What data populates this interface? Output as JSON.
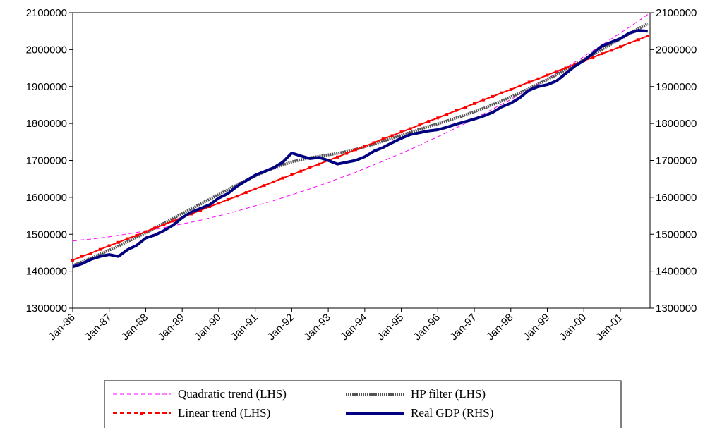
{
  "chart_data": {
    "type": "line",
    "categories": [
      "Jan-86",
      null,
      null,
      null,
      "Jan-87",
      null,
      null,
      null,
      "Jan-88",
      null,
      null,
      null,
      "Jan-89",
      null,
      null,
      null,
      "Jan-90",
      null,
      null,
      null,
      "Jan-91",
      null,
      null,
      null,
      "Jan-92",
      null,
      null,
      null,
      "Jan-93",
      null,
      null,
      null,
      "Jan-94",
      null,
      null,
      null,
      "Jan-95",
      null,
      null,
      null,
      "Jan-96",
      null,
      null,
      null,
      "Jan-97",
      null,
      null,
      null,
      "Jan-98",
      null,
      null,
      null,
      "Jan-99",
      null,
      null,
      null,
      "Jan-00",
      null,
      null,
      null,
      "Jan-01",
      null,
      null,
      null
    ],
    "ylim": [
      1300000,
      2100000
    ],
    "yticks": [
      1300000,
      1400000,
      1500000,
      1600000,
      1700000,
      1800000,
      1900000,
      2000000,
      2100000
    ],
    "y2lim": [
      1300000,
      2100000
    ],
    "y2ticks": [
      1300000,
      1400000,
      1500000,
      1600000,
      1700000,
      1800000,
      1900000,
      2000000,
      2100000
    ],
    "grid": false,
    "legend": "bottom",
    "series": [
      {
        "name": "Quadratic trend (LHS)",
        "color": "#ff00ff",
        "style": "dashed",
        "width": 1,
        "values": [
          1482000,
          1485000,
          1487000,
          1490000,
          1493000,
          1497000,
          1501000,
          1505000,
          1509000,
          1513000,
          1518000,
          1523000,
          1528000,
          1533000,
          1538000,
          1544000,
          1550000,
          1556000,
          1563000,
          1570000,
          1577000,
          1584000,
          1591000,
          1599000,
          1607000,
          1615000,
          1623000,
          1632000,
          1640000,
          1650000,
          1659000,
          1668000,
          1678000,
          1688000,
          1698000,
          1709000,
          1719000,
          1730000,
          1741000,
          1753000,
          1764000,
          1776000,
          1788000,
          1800000,
          1813000,
          1826000,
          1839000,
          1852000,
          1865000,
          1879000,
          1893000,
          1907000,
          1921000,
          1936000,
          1951000,
          1966000,
          1981000,
          1997000,
          2013000,
          2029000,
          2045000,
          2061000,
          2078000,
          2095000
        ]
      },
      {
        "name": "HP filter (LHS)",
        "color": "#555555",
        "style": "dotted",
        "width": 4,
        "values": [
          1415000,
          1425000,
          1435000,
          1446000,
          1457000,
          1468000,
          1480000,
          1492000,
          1504000,
          1517000,
          1530000,
          1543000,
          1556000,
          1569000,
          1582000,
          1595000,
          1608000,
          1621000,
          1634000,
          1646000,
          1658000,
          1669000,
          1679000,
          1688000,
          1696000,
          1702000,
          1707000,
          1711000,
          1715000,
          1719000,
          1724000,
          1730000,
          1737000,
          1744000,
          1752000,
          1760000,
          1768000,
          1776000,
          1784000,
          1792000,
          1799000,
          1807000,
          1815000,
          1823000,
          1832000,
          1841000,
          1851000,
          1861000,
          1872000,
          1883000,
          1895000,
          1907000,
          1919000,
          1932000,
          1945000,
          1959000,
          1973000,
          1987000,
          2001000,
          2015000,
          2029000,
          2043000,
          2057000,
          2070000
        ]
      },
      {
        "name": "Linear trend (LHS)",
        "color": "#ff0000",
        "style": "markers",
        "width": 2,
        "values": [
          1430000,
          1440000,
          1449000,
          1459000,
          1469000,
          1478000,
          1488000,
          1497000,
          1507000,
          1517000,
          1526000,
          1536000,
          1546000,
          1555000,
          1565000,
          1575000,
          1584000,
          1594000,
          1603000,
          1613000,
          1623000,
          1632000,
          1642000,
          1652000,
          1661000,
          1671000,
          1681000,
          1690000,
          1700000,
          1709000,
          1719000,
          1729000,
          1738000,
          1748000,
          1758000,
          1767000,
          1777000,
          1786000,
          1796000,
          1806000,
          1815000,
          1825000,
          1835000,
          1844000,
          1854000,
          1864000,
          1873000,
          1883000,
          1892000,
          1902000,
          1912000,
          1921000,
          1931000,
          1941000,
          1950000,
          1960000,
          1970000,
          1979000,
          1989000,
          1998000,
          2008000,
          2018000,
          2027000,
          2037000
        ]
      },
      {
        "name": "Real GDP (RHS)",
        "color": "#000080",
        "style": "solid",
        "width": 4,
        "axis": "y2",
        "values": [
          1412000,
          1420000,
          1432000,
          1440000,
          1445000,
          1440000,
          1458000,
          1470000,
          1490000,
          1498000,
          1510000,
          1525000,
          1545000,
          1560000,
          1570000,
          1580000,
          1598000,
          1610000,
          1630000,
          1645000,
          1660000,
          1670000,
          1680000,
          1695000,
          1720000,
          1712000,
          1705000,
          1708000,
          1700000,
          1690000,
          1695000,
          1700000,
          1710000,
          1725000,
          1735000,
          1748000,
          1760000,
          1770000,
          1775000,
          1780000,
          1783000,
          1790000,
          1798000,
          1805000,
          1812000,
          1820000,
          1830000,
          1845000,
          1855000,
          1870000,
          1890000,
          1900000,
          1905000,
          1915000,
          1935000,
          1955000,
          1970000,
          1990000,
          2010000,
          2020000,
          2030000,
          2045000,
          2052000,
          2050000
        ]
      }
    ]
  }
}
